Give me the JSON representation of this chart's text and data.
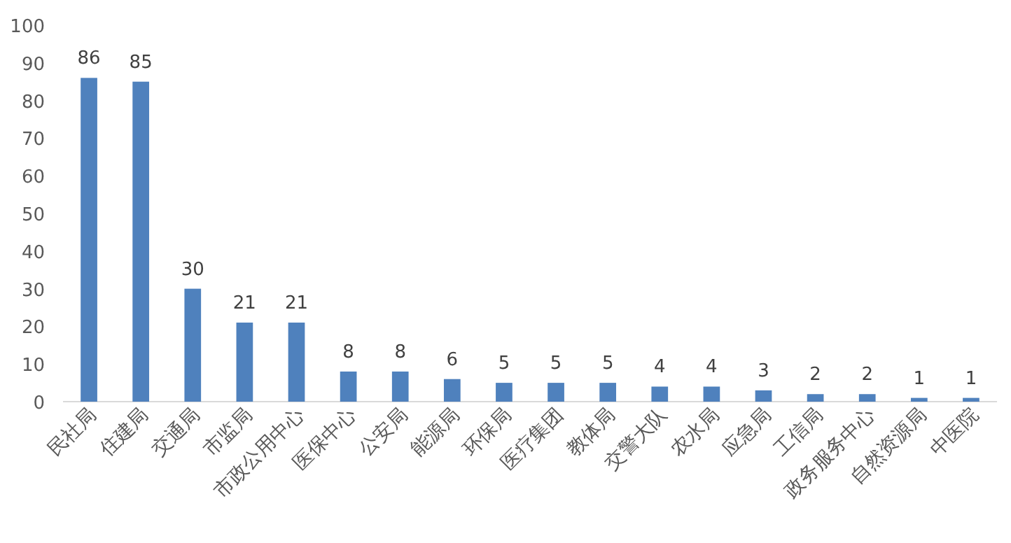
{
  "chart_data": {
    "type": "bar",
    "categories": [
      "民社局",
      "住建局",
      "交通局",
      "市监局",
      "市政公用中心",
      "医保中心",
      "公安局",
      "能源局",
      "环保局",
      "医疗集团",
      "教体局",
      "交警大队",
      "农水局",
      "应急局",
      "工信局",
      "政务服务中心",
      "自然资源局",
      "中医院"
    ],
    "values": [
      86,
      85,
      30,
      21,
      21,
      8,
      8,
      6,
      5,
      5,
      5,
      4,
      4,
      3,
      2,
      2,
      1,
      1
    ],
    "color": "#4f81bd",
    "ylim": [
      0,
      100
    ],
    "yticks": [
      0,
      10,
      20,
      30,
      40,
      50,
      60,
      70,
      80,
      90,
      100
    ],
    "data_labels": true
  }
}
